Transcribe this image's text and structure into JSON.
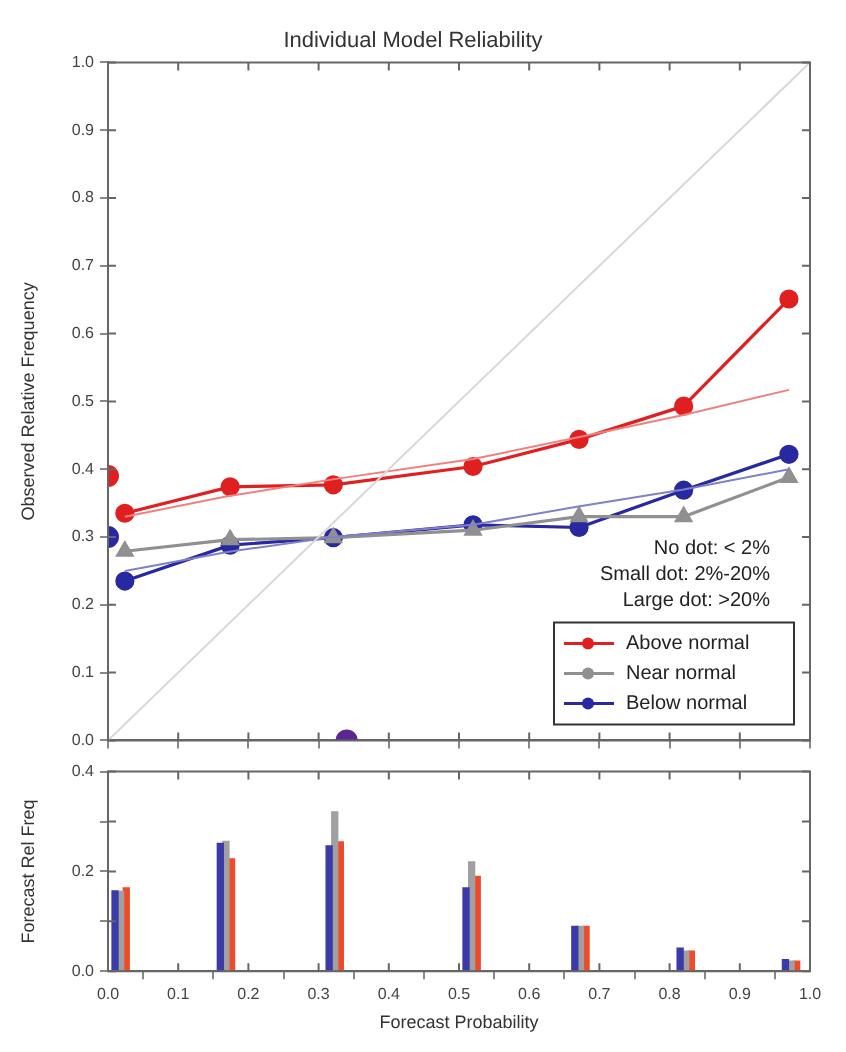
{
  "chart_data": [
    {
      "type": "line",
      "title": "Individual Model Reliability",
      "ylabel": "Observed Relative Frequency",
      "xlim": [
        0,
        1
      ],
      "xticks": [
        0,
        0.1,
        0.2,
        0.3,
        0.4,
        0.5,
        0.6,
        0.7,
        0.8,
        0.9,
        1
      ],
      "ylim": [
        0,
        1
      ],
      "yticks": [
        {
          "value": 0,
          "label": "0.0"
        },
        0.1,
        0.2,
        0.3,
        0.4,
        0.5,
        0.6,
        0.7,
        0.8,
        0.9,
        {
          "value": 1,
          "label": "1.0"
        }
      ],
      "tick_labels": "y",
      "grid": false,
      "legend": "bottom right",
      "annotations": [
        "No dot: < 2%",
        "Small dot: 2%-20%",
        "Large dot: >20%"
      ],
      "series": [
        {
          "color": "#d8d8d8",
          "marker": "none",
          "x": [
            0,
            1
          ],
          "values": [
            0,
            1
          ]
        },
        {
          "color": "#f08080",
          "marker": "none",
          "x": [
            0.024,
            0.17,
            0.32,
            0.52,
            0.67,
            0.82,
            0.97
          ],
          "values": [
            0.33,
            0.36,
            0.385,
            0.415,
            0.447,
            0.48,
            0.517
          ]
        },
        {
          "color": "#8080c8",
          "marker": "none",
          "x": [
            0.024,
            0.17,
            0.32,
            0.52,
            0.67,
            0.82,
            0.97
          ],
          "values": [
            0.25,
            0.278,
            0.3,
            0.318,
            0.345,
            0.37,
            0.4
          ]
        },
        {
          "name": "Above normal",
          "color": "#e02020",
          "marker": "circle",
          "x": [
            0.024,
            0.174,
            0.321,
            0.52,
            0.671,
            0.82,
            0.97
          ],
          "values": [
            0.335,
            0.374,
            0.377,
            0.404,
            0.444,
            0.493,
            0.651
          ]
        },
        {
          "name": "Near normal",
          "color": "#909090",
          "marker": "triangle",
          "x": [
            0.024,
            0.174,
            0.321,
            0.52,
            0.671,
            0.82,
            0.97
          ],
          "values": [
            0.279,
            0.296,
            0.299,
            0.31,
            0.33,
            0.33,
            0.388
          ]
        },
        {
          "name": "Below normal",
          "color": "#2828a0",
          "marker": "circle",
          "x": [
            0.024,
            0.174,
            0.321,
            0.52,
            0.671,
            0.82,
            0.97
          ],
          "values": [
            0.235,
            0.288,
            0.299,
            0.318,
            0.314,
            0.369,
            0.422
          ]
        },
        {
          "type": "scatter",
          "marker": "circle",
          "x": [
            0,
            0,
            0.34
          ],
          "values": [
            0.39,
            0.3,
            0
          ],
          "colors": [
            "#e02020",
            "#2828a0",
            "#5a2890"
          ]
        }
      ]
    },
    {
      "type": "bar",
      "xlabel": "Forecast Probability",
      "ylabel": "Forecast Rel Freq",
      "xlim": [
        0,
        1
      ],
      "xticks": [
        {
          "value": 0,
          "label": "0.0"
        },
        0.1,
        0.2,
        0.3,
        0.4,
        0.5,
        0.6,
        0.7,
        0.8,
        0.9,
        {
          "value": 1,
          "label": "1.0"
        }
      ],
      "ylim": [
        0,
        0.4
      ],
      "yticks": [
        {
          "value": 0,
          "label": "0.0"
        },
        {
          "value": 0.1,
          "label": null
        },
        0.2,
        {
          "value": 0.3,
          "label": null
        },
        0.4
      ],
      "grid": false,
      "series": [
        {
          "color": "#3a3aa8",
          "x": [
            0.01,
            0.16,
            0.315,
            0.51,
            0.665,
            0.815,
            0.965
          ],
          "values": [
            0.161,
            0.256,
            0.251,
            0.167,
            0.09,
            0.046,
            0.023
          ]
        },
        {
          "color": "#a0a0a0",
          "x": [
            0.018,
            0.168,
            0.323,
            0.518,
            0.673,
            0.823,
            0.973
          ],
          "values": [
            0.16,
            0.26,
            0.319,
            0.219,
            0.09,
            0.04,
            0.02
          ]
        },
        {
          "color": "#f04a2a",
          "x": [
            0.026,
            0.176,
            0.331,
            0.526,
            0.681,
            0.831,
            0.981
          ],
          "values": [
            0.167,
            0.225,
            0.259,
            0.19,
            0.09,
            0.04,
            0.02
          ]
        }
      ]
    }
  ]
}
